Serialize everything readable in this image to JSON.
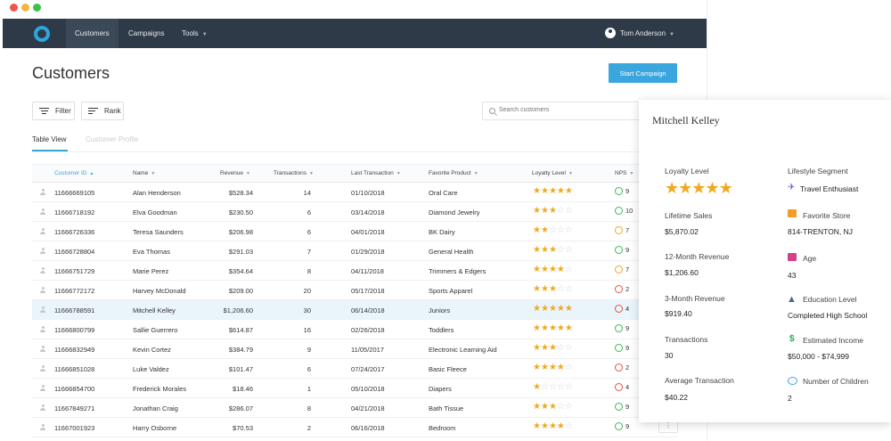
{
  "nav": {
    "items": [
      {
        "label": "Customers",
        "active": true
      },
      {
        "label": "Campaigns",
        "active": false
      },
      {
        "label": "Tools",
        "active": false
      }
    ],
    "user_name": "Tom Anderson"
  },
  "page": {
    "title": "Customers",
    "start_campaign_label": "Start Campaign",
    "filter_label": "Filter",
    "rank_label": "Rank",
    "search_placeholder": "Search customers",
    "tabs": [
      {
        "label": "Table View",
        "active": true
      },
      {
        "label": "Customer Profile",
        "active": false
      }
    ]
  },
  "table": {
    "columns": [
      "Customer ID",
      "Name",
      "Revenue",
      "Transactions",
      "Last Transaction",
      "Favorite Product",
      "Loyalty Level",
      "NPS"
    ],
    "sorted_column": "Customer ID",
    "rows": [
      {
        "id": "11666669105",
        "name": "Alan Henderson",
        "revenue": "$528.34",
        "transactions": "14",
        "last": "01/10/2018",
        "product": "Oral Care",
        "loyalty": 5,
        "nps": "9",
        "nps_mood": "g"
      },
      {
        "id": "11666718192",
        "name": "Elva Goodman",
        "revenue": "$230.50",
        "transactions": "6",
        "last": "03/14/2018",
        "product": "Diamond Jewelry",
        "loyalty": 3,
        "nps": "10",
        "nps_mood": "g"
      },
      {
        "id": "11666726336",
        "name": "Teresa Saunders",
        "revenue": "$206.98",
        "transactions": "6",
        "last": "04/01/2018",
        "product": "BK Dairy",
        "loyalty": 2,
        "nps": "7",
        "nps_mood": "y"
      },
      {
        "id": "11666728804",
        "name": "Eva Thomas",
        "revenue": "$291.03",
        "transactions": "7",
        "last": "01/29/2018",
        "product": "General Health",
        "loyalty": 3,
        "nps": "9",
        "nps_mood": "g"
      },
      {
        "id": "11666751729",
        "name": "Marie Perez",
        "revenue": "$354.64",
        "transactions": "8",
        "last": "04/11/2018",
        "product": "Trimmers & Edgers",
        "loyalty": 4,
        "nps": "7",
        "nps_mood": "y"
      },
      {
        "id": "11666772172",
        "name": "Harvey McDonald",
        "revenue": "$209.00",
        "transactions": "20",
        "last": "05/17/2018",
        "product": "Sports Apparel",
        "loyalty": 3,
        "nps": "2",
        "nps_mood": "r"
      },
      {
        "id": "11666788591",
        "name": "Mitchell Kelley",
        "revenue": "$1,206.60",
        "transactions": "30",
        "last": "06/14/2018",
        "product": "Juniors",
        "loyalty": 5,
        "nps": "4",
        "nps_mood": "r",
        "selected": true
      },
      {
        "id": "11666800799",
        "name": "Sallie Guerrero",
        "revenue": "$614.87",
        "transactions": "16",
        "last": "02/26/2018",
        "product": "Toddlers",
        "loyalty": 5,
        "nps": "9",
        "nps_mood": "g"
      },
      {
        "id": "11666832949",
        "name": "Kevin Cortez",
        "revenue": "$384.79",
        "transactions": "9",
        "last": "11/05/2017",
        "product": "Electronic Learning Aid",
        "loyalty": 3,
        "nps": "9",
        "nps_mood": "g"
      },
      {
        "id": "11666851028",
        "name": "Luke Valdez",
        "revenue": "$101.47",
        "transactions": "6",
        "last": "07/24/2017",
        "product": "Basic Fleece",
        "loyalty": 4,
        "nps": "2",
        "nps_mood": "r"
      },
      {
        "id": "11666854700",
        "name": "Frederick Morales",
        "revenue": "$18.46",
        "transactions": "1",
        "last": "05/10/2018",
        "product": "Diapers",
        "loyalty": 1,
        "nps": "4",
        "nps_mood": "r"
      },
      {
        "id": "11667849271",
        "name": "Jonathan Craig",
        "revenue": "$286.07",
        "transactions": "8",
        "last": "04/21/2018",
        "product": "Bath Tissue",
        "loyalty": 3,
        "nps": "9",
        "nps_mood": "g"
      },
      {
        "id": "11667001923",
        "name": "Harry Osborne",
        "revenue": "$70.53",
        "transactions": "2",
        "last": "06/16/2018",
        "product": "Bedroom",
        "loyalty": 4,
        "nps": "9",
        "nps_mood": "g"
      }
    ]
  },
  "profile": {
    "name": "Mitchell Kelley",
    "loyalty_label": "Loyalty Level",
    "loyalty_stars": 5,
    "lifetime_sales_label": "Lifetime Sales",
    "lifetime_sales": "$5,870.02",
    "revenue_12_label": "12-Month Revenue",
    "revenue_12": "$1,206.60",
    "revenue_3_label": "3-Month Revenue",
    "revenue_3": "$919.40",
    "transactions_label": "Transactions",
    "transactions": "30",
    "avg_transaction_label": "Average Transaction",
    "avg_transaction": "$40.22",
    "lifestyle_label": "Lifestyle Segment",
    "lifestyle": "Travel Enthusiast",
    "store_label": "Favorite Store",
    "store": "814-TRENTON, NJ",
    "age_label": "Age",
    "age": "43",
    "education_label": "Education Level",
    "education": "Completed High School",
    "income_label": "Estimated Income",
    "income": "$50,000 - $74,999",
    "children_label": "Number of Children",
    "children": "2"
  },
  "colors": {
    "accent": "#3aa6de",
    "nav_bg": "#2e3a47",
    "star": "#f2a81d",
    "nps_good": "#3db65b",
    "nps_neutral": "#f1a52d",
    "nps_bad": "#e2534d"
  },
  "icons": {
    "lifestyle": "plane-icon",
    "store": "store-icon",
    "age": "cake-icon",
    "education": "graduation-cap-icon",
    "income": "dollar-icon",
    "children": "baby-face-icon"
  }
}
